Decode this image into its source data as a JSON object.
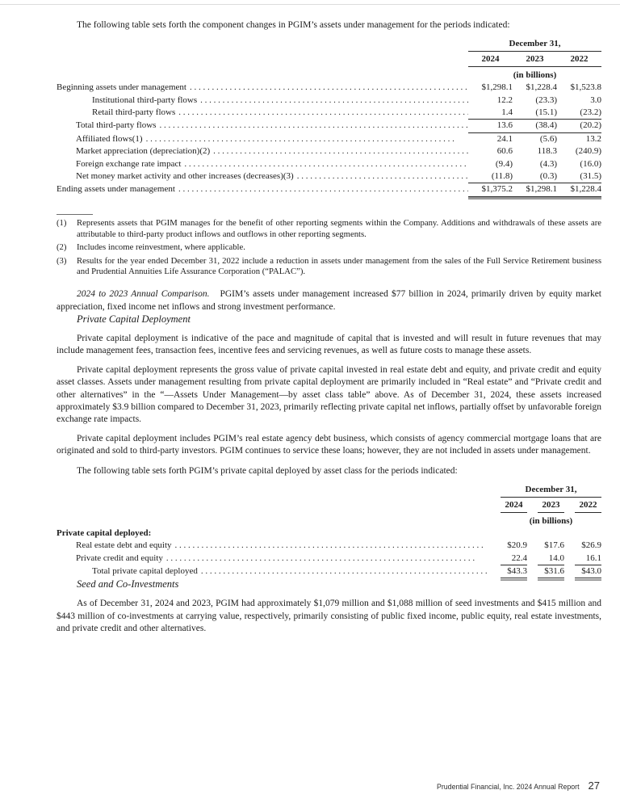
{
  "colors": {
    "text": "#1b1b1b",
    "rule": "#2a2a2a",
    "double_rule_gray": "#9a9a9a",
    "top_hairline": "#dcdcdc"
  },
  "document": {
    "intro": "The following table sets forth the component changes in PGIM’s assets under management for the periods indicated:",
    "comparison": {
      "lead": "2024 to 2023 Annual Comparison.",
      "text": "PGIM’s assets under management increased $77 billion in 2024, primarily driven by equity market appreciation, fixed income net inflows and strong investment performance."
    },
    "private_capital": {
      "heading": "Private Capital Deployment",
      "p1": "Private capital deployment is indicative of the pace and magnitude of capital that is invested and will result in future revenues that may include management fees, transaction fees, incentive fees and servicing revenues, as well as future costs to manage these assets.",
      "p2": "Private capital deployment represents the gross value of private capital invested in real estate debt and equity, and private credit and equity asset classes. Assets under management resulting from private capital deployment are primarily included in “Real estate” and “Private credit and other alternatives” in the “—Assets Under Management—by asset class table” above. As of December 31, 2024, these assets increased approximately $3.9 billion compared to December 31, 2023, primarily reflecting private capital net inflows, partially offset by unfavorable foreign exchange rate impacts.",
      "p3": "Private capital deployment includes PGIM’s real estate agency debt business, which consists of agency commercial mortgage loans that are originated and sold to third-party investors. PGIM continues to service these loans; however, they are not included in assets under management.",
      "p4": "The following table sets forth PGIM’s private capital deployed by asset class for the periods indicated:"
    },
    "seed": {
      "heading": "Seed and Co-Investments",
      "p1": "As of December 31, 2024 and 2023, PGIM had approximately $1,079 million and $1,088 million of seed investments and $415 million and $443 million of co-investments at carrying value, respectively, primarily consisting of public fixed income, public equity, real estate investments, and private credit and other alternatives."
    },
    "footnotes": [
      {
        "marker": "(1)",
        "text": "Represents assets that PGIM manages for the benefit of other reporting segments within the Company. Additions and withdrawals of these assets are attributable to third-party product inflows and outflows in other reporting segments."
      },
      {
        "marker": "(2)",
        "text": "Includes income reinvestment, where applicable."
      },
      {
        "marker": "(3)",
        "text": "Results for the year ended December 31, 2022 include a reduction in assets under management from the sales of the Full Service Retirement business and Prudential Annuities Life Assurance Corporation (“PALAC”)."
      }
    ],
    "footer": {
      "text": "Prudential Financial, Inc. 2024 Annual Report",
      "page_number": "27"
    }
  },
  "tables": [
    {
      "name": "aum-component-changes",
      "date_header": "December 31,",
      "years": [
        "2024",
        "2023",
        "2022"
      ],
      "units": "(in billions)",
      "rows": [
        {
          "label": "Beginning assets under management",
          "indent": 0,
          "bold": false,
          "values": [
            "$1,298.1",
            "$1,228.4",
            "$1,523.8"
          ],
          "underline": "none"
        },
        {
          "label": "Institutional third-party flows",
          "indent": 2,
          "bold": false,
          "values": [
            "12.2",
            "(23.3)",
            "3.0"
          ],
          "underline": "none"
        },
        {
          "label": "Retail third-party flows",
          "indent": 2,
          "bold": false,
          "values": [
            "1.4",
            "(15.1)",
            "(23.2)"
          ],
          "underline": "single"
        },
        {
          "label": "Total third-party flows",
          "indent": 1,
          "bold": false,
          "values": [
            "13.6",
            "(38.4)",
            "(20.2)"
          ],
          "underline": "single"
        },
        {
          "label": "Affiliated flows(1)",
          "indent": 1,
          "bold": false,
          "values": [
            "24.1",
            "(5.6)",
            "13.2"
          ],
          "underline": "none"
        },
        {
          "label": "Market appreciation (depreciation)(2)",
          "indent": 1,
          "bold": false,
          "values": [
            "60.6",
            "118.3",
            "(240.9)"
          ],
          "underline": "none"
        },
        {
          "label": "Foreign exchange rate impact",
          "indent": 1,
          "bold": false,
          "values": [
            "(9.4)",
            "(4.3)",
            "(16.0)"
          ],
          "underline": "none"
        },
        {
          "label": "Net money market activity and other increases (decreases)(3)",
          "indent": 1,
          "bold": false,
          "values": [
            "(11.8)",
            "(0.3)",
            "(31.5)"
          ],
          "underline": "single"
        },
        {
          "label": "Ending assets under management",
          "indent": 0,
          "bold": false,
          "values": [
            "$1,375.2",
            "$1,298.1",
            "$1,228.4"
          ],
          "underline": "double"
        }
      ]
    },
    {
      "name": "private-capital-deployed",
      "date_header": "December 31,",
      "years": [
        "2024",
        "2023",
        "2022"
      ],
      "units": "(in billions)",
      "rows": [
        {
          "label": "Private capital deployed:",
          "indent": 0,
          "bold": true,
          "values": [
            "",
            "",
            ""
          ],
          "underline": "none"
        },
        {
          "label": "Real estate debt and equity",
          "indent": 1,
          "bold": false,
          "values": [
            "$20.9",
            "$17.6",
            "$26.9"
          ],
          "underline": "none"
        },
        {
          "label": "Private credit and equity",
          "indent": 1,
          "bold": false,
          "values": [
            "22.4",
            "14.0",
            "16.1"
          ],
          "underline": "single"
        },
        {
          "label": "Total private capital deployed",
          "indent": 2,
          "bold": false,
          "values": [
            "$43.3",
            "$31.6",
            "$43.0"
          ],
          "underline": "double"
        }
      ]
    }
  ]
}
